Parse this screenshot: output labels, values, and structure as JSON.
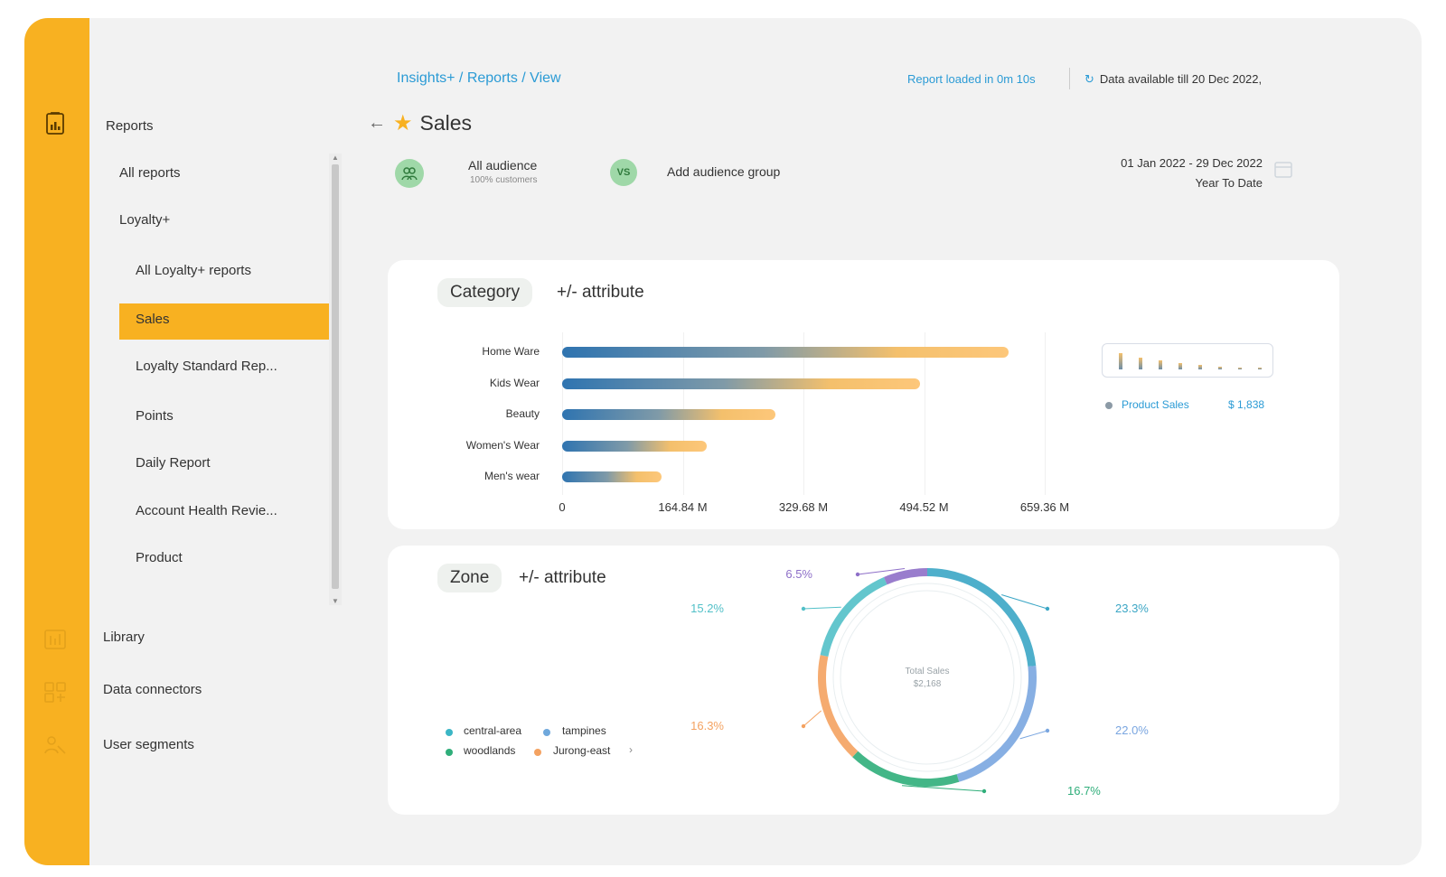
{
  "breadcrumb": "Insights+ / Reports / View",
  "header": {
    "loaded_text": "Report loaded in 0m 10s",
    "available_text": "Data  available till  20 Dec 2022,"
  },
  "page": {
    "title": "Sales",
    "audience_label": "All audience",
    "audience_sub": "100% customers",
    "vs_label": "VS",
    "add_group_label": "Add audience group",
    "date_range": "01 Jan 2022 - 29 Dec 2022",
    "date_preset": "Year To Date"
  },
  "nav": {
    "section_reports": "Reports",
    "all_reports": "All reports",
    "loyalty": "Loyalty+",
    "all_loyalty": "All Loyalty+ reports",
    "sales": "Sales",
    "loyalty_standard": "Loyalty Standard Rep...",
    "points": "Points",
    "daily_report": "Daily Report",
    "account_health": "Account Health Revie...",
    "product": "Product",
    "library": "Library",
    "data_connectors": "Data connectors",
    "user_segments": "User segments"
  },
  "category_card": {
    "pill": "Category",
    "attr": "+/- attribute",
    "legend_label": "Product Sales",
    "legend_value": "$ 1,838"
  },
  "zone_card": {
    "pill": "Zone",
    "attr": "+/- attribute",
    "center_label": "Total Sales",
    "center_value": "$2,168",
    "legend": [
      "central-area",
      "tampines",
      "woodlands",
      "Jurong-east"
    ],
    "legend_colors": [
      "#3bb6c5",
      "#6fa8dc",
      "#2fae7a",
      "#f4a261"
    ]
  },
  "colors": {
    "accent": "#f8b121",
    "link": "#2b9bd5"
  },
  "chart_data": [
    {
      "type": "bar",
      "orientation": "horizontal",
      "categories": [
        "Home Ware",
        "Kids Wear",
        "Beauty",
        "Women's Wear",
        "Men's wear"
      ],
      "values": [
        610,
        489,
        291,
        198,
        136
      ],
      "unit": "M",
      "xticks": [
        "0",
        "164.84 M",
        "329.68 M",
        "494.52 M",
        "659.36 M"
      ],
      "xlim": [
        0,
        659.36
      ],
      "grid": true
    },
    {
      "type": "pie",
      "variant": "donut",
      "slices": [
        {
          "label": "23.3%",
          "value": 23.3,
          "color": "#3ba6c5"
        },
        {
          "label": "22.0%",
          "value": 22.0,
          "color": "#7aa6e0"
        },
        {
          "label": "16.7%",
          "value": 16.7,
          "color": "#2fae7a"
        },
        {
          "label": "16.3%",
          "value": 16.3,
          "color": "#f4a261"
        },
        {
          "label": "15.2%",
          "value": 15.2,
          "color": "#52c0c8"
        },
        {
          "label": "6.5%",
          "value": 6.5,
          "color": "#8e6fc8"
        }
      ]
    }
  ]
}
